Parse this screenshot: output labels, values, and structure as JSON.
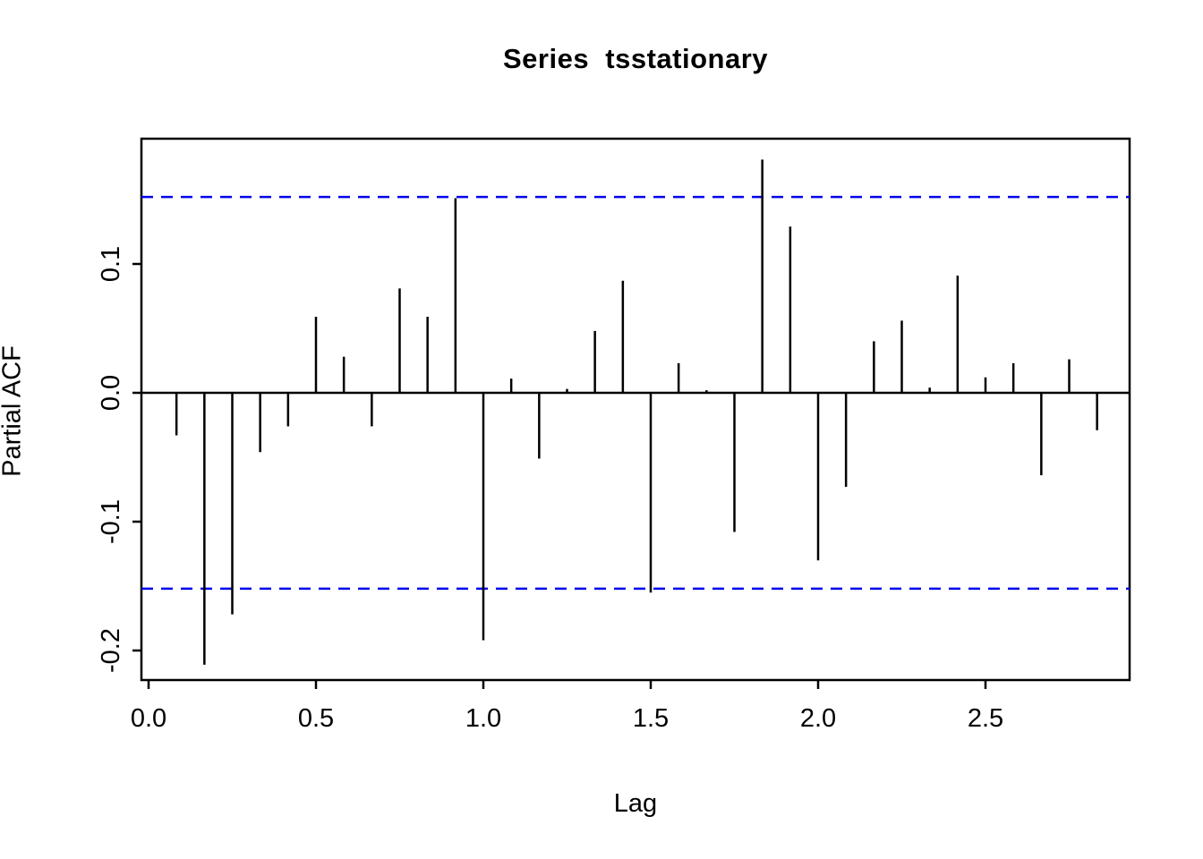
{
  "title": "Series  tsstationary",
  "chart_data": {
    "type": "bar",
    "subtype": "pacf-stem-plot",
    "title": "Series  tsstationary",
    "xlabel": "Lag",
    "ylabel": "Partial ACF",
    "x": [
      0.0833,
      0.1667,
      0.25,
      0.3333,
      0.4167,
      0.5,
      0.5833,
      0.6667,
      0.75,
      0.8333,
      0.9167,
      1.0,
      1.0833,
      1.1667,
      1.25,
      1.3333,
      1.4167,
      1.5,
      1.5833,
      1.6667,
      1.75,
      1.8333,
      1.9167,
      2.0,
      2.0833,
      2.1667,
      2.25,
      2.3333,
      2.4167,
      2.5,
      2.5833,
      2.6667,
      2.75,
      2.8333
    ],
    "values": [
      -0.033,
      -0.211,
      -0.172,
      -0.046,
      -0.026,
      0.059,
      0.028,
      -0.026,
      0.081,
      0.059,
      0.151,
      -0.192,
      0.011,
      -0.051,
      0.003,
      0.048,
      0.087,
      -0.155,
      0.023,
      0.002,
      -0.108,
      0.181,
      0.129,
      -0.13,
      -0.073,
      0.04,
      0.056,
      0.004,
      0.091,
      0.012,
      0.023,
      -0.064,
      0.026,
      -0.029
    ],
    "confidence_bounds": {
      "upper": 0.152,
      "lower": -0.152,
      "style": "dashed"
    },
    "xticks": [
      "0.0",
      "0.5",
      "1.0",
      "1.5",
      "2.0",
      "2.5"
    ],
    "xtick_values": [
      0.0,
      0.5,
      1.0,
      1.5,
      2.0,
      2.5
    ],
    "yticks": [
      "0.1",
      "0.0",
      "-0.1",
      "-0.2"
    ],
    "ytick_values": [
      0.1,
      0.0,
      -0.1,
      -0.2
    ],
    "xlim": [
      -0.021,
      2.93
    ],
    "ylim": [
      -0.223,
      0.197
    ],
    "grid": false,
    "legend": null,
    "colors": {
      "bars": "#000000",
      "axis": "#000000",
      "zero_line": "#000000",
      "confidence": "#0000EE",
      "background": "#FFFFFF",
      "text": "#000000"
    }
  }
}
